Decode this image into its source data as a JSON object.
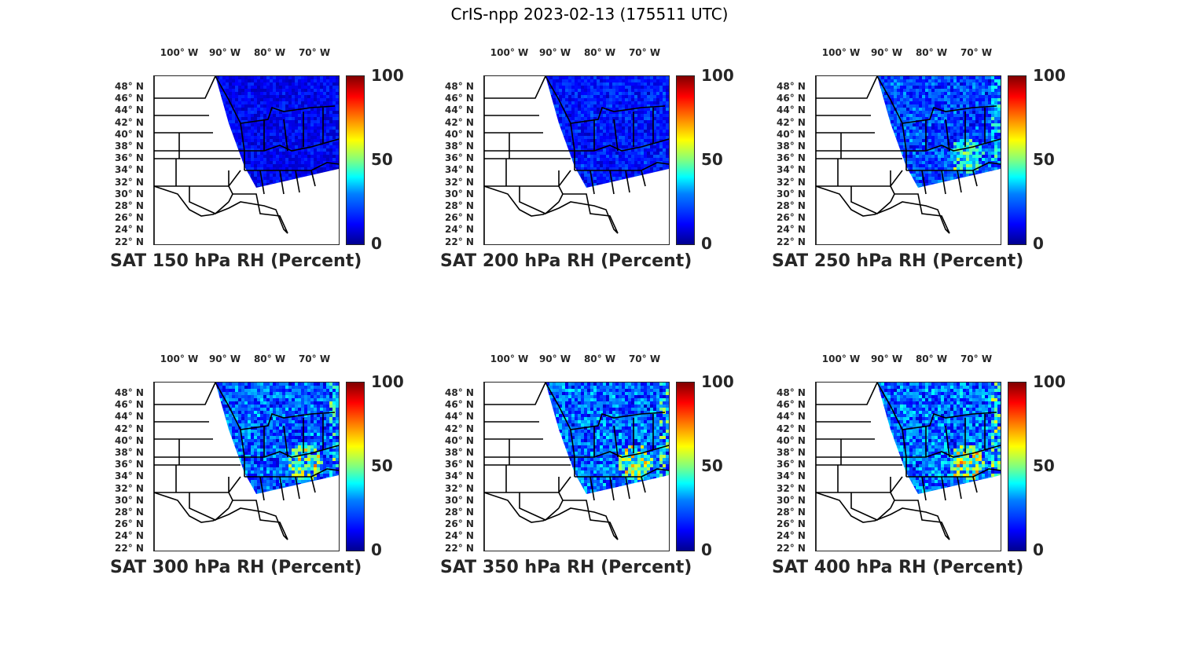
{
  "figure_title": "CrIS-npp 2023-02-13 (175511 UTC)",
  "lon_labels": [
    "100° W",
    "90° W",
    "80° W",
    "70° W"
  ],
  "lat_labels": [
    "48° N",
    "46° N",
    "44° N",
    "42° N",
    "40° N",
    "38° N",
    "36° N",
    "34° N",
    "32° N",
    "30° N",
    "28° N",
    "26° N",
    "24° N",
    "22° N"
  ],
  "colorbar": {
    "min_label": "0",
    "mid_label": "50",
    "max_label": "100",
    "colormap": "jet"
  },
  "panels": [
    {
      "title": "SAT 150 hPa RH (Percent)",
      "level_hpa": 150,
      "moisture": 0.05
    },
    {
      "title": "SAT 200 hPa RH (Percent)",
      "level_hpa": 200,
      "moisture": 0.2
    },
    {
      "title": "SAT 250 hPa RH (Percent)",
      "level_hpa": 250,
      "moisture": 0.45
    },
    {
      "title": "SAT 300 hPa RH (Percent)",
      "level_hpa": 300,
      "moisture": 0.6
    },
    {
      "title": "SAT 350 hPa RH (Percent)",
      "level_hpa": 350,
      "moisture": 0.65
    },
    {
      "title": "SAT 400 hPa RH (Percent)",
      "level_hpa": 400,
      "moisture": 0.7
    }
  ],
  "colors": {
    "background": "#ffffff",
    "text": "#262626",
    "borders": "#000000"
  }
}
